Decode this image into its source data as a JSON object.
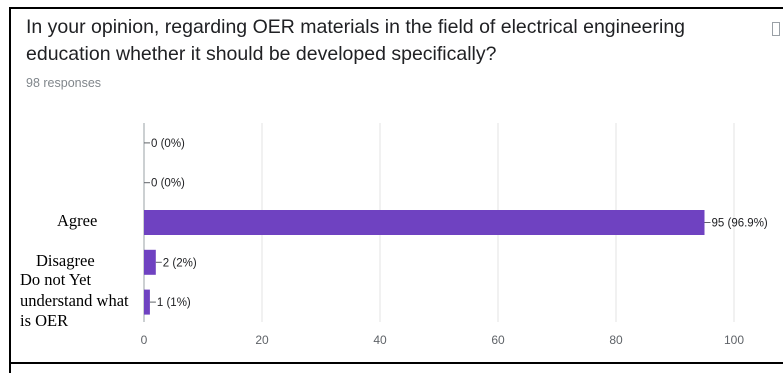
{
  "question": {
    "title": "In your opinion, regarding OER materials in the field of electrical engineering education whether it should be developed specifically?",
    "responses": "98 responses"
  },
  "chart_data": {
    "type": "bar",
    "orientation": "horizontal",
    "categories": [
      "",
      "",
      "Agree",
      "Disagree",
      "Do not Yet understand what is OER"
    ],
    "values": [
      0,
      0,
      95,
      2,
      1
    ],
    "data_labels": [
      "0 (0%)",
      "0 (0%)",
      "95 (96.9%)",
      "2 (2%)",
      "1 (1%)"
    ],
    "xlim": [
      0,
      100
    ],
    "xticks": [
      0,
      20,
      40,
      60,
      80,
      100
    ],
    "tick_labels": [
      "0",
      "20",
      "40",
      "60",
      "80",
      "100"
    ],
    "grid": true,
    "bar_color": "#6f42c1"
  }
}
